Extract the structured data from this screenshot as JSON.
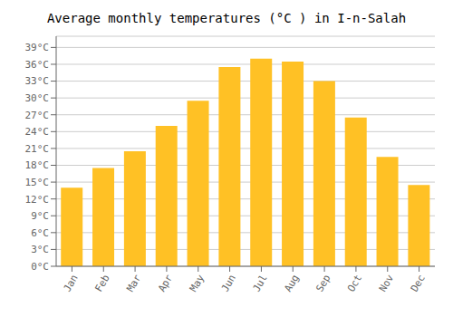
{
  "chart_data": {
    "type": "bar",
    "title": "Average monthly temperatures (°C ) in I-n-Salah",
    "categories": [
      "Jan",
      "Feb",
      "Mar",
      "Apr",
      "May",
      "Jun",
      "Jul",
      "Aug",
      "Sep",
      "Oct",
      "Nov",
      "Dec"
    ],
    "values": [
      14,
      17.5,
      20.5,
      25,
      29.5,
      35.5,
      37,
      36.5,
      33,
      26.5,
      19.5,
      14.5
    ],
    "color": "#FFC125",
    "ylim": [
      0,
      41
    ],
    "yticks": [
      {
        "value": 0,
        "label": "0°C"
      },
      {
        "value": 3,
        "label": "3°C"
      },
      {
        "value": 6,
        "label": "6°C"
      },
      {
        "value": 9,
        "label": "9°C"
      },
      {
        "value": 12,
        "label": "12°C"
      },
      {
        "value": 15,
        "label": "15°C"
      },
      {
        "value": 18,
        "label": "18°C"
      },
      {
        "value": 21,
        "label": "21°C"
      },
      {
        "value": 24,
        "label": "24°C"
      },
      {
        "value": 27,
        "label": "27°C"
      },
      {
        "value": 30,
        "label": "30°C"
      },
      {
        "value": 33,
        "label": "33°C"
      },
      {
        "value": 36,
        "label": "36°C"
      },
      {
        "value": 39,
        "label": "39°C"
      }
    ],
    "grid": true
  }
}
